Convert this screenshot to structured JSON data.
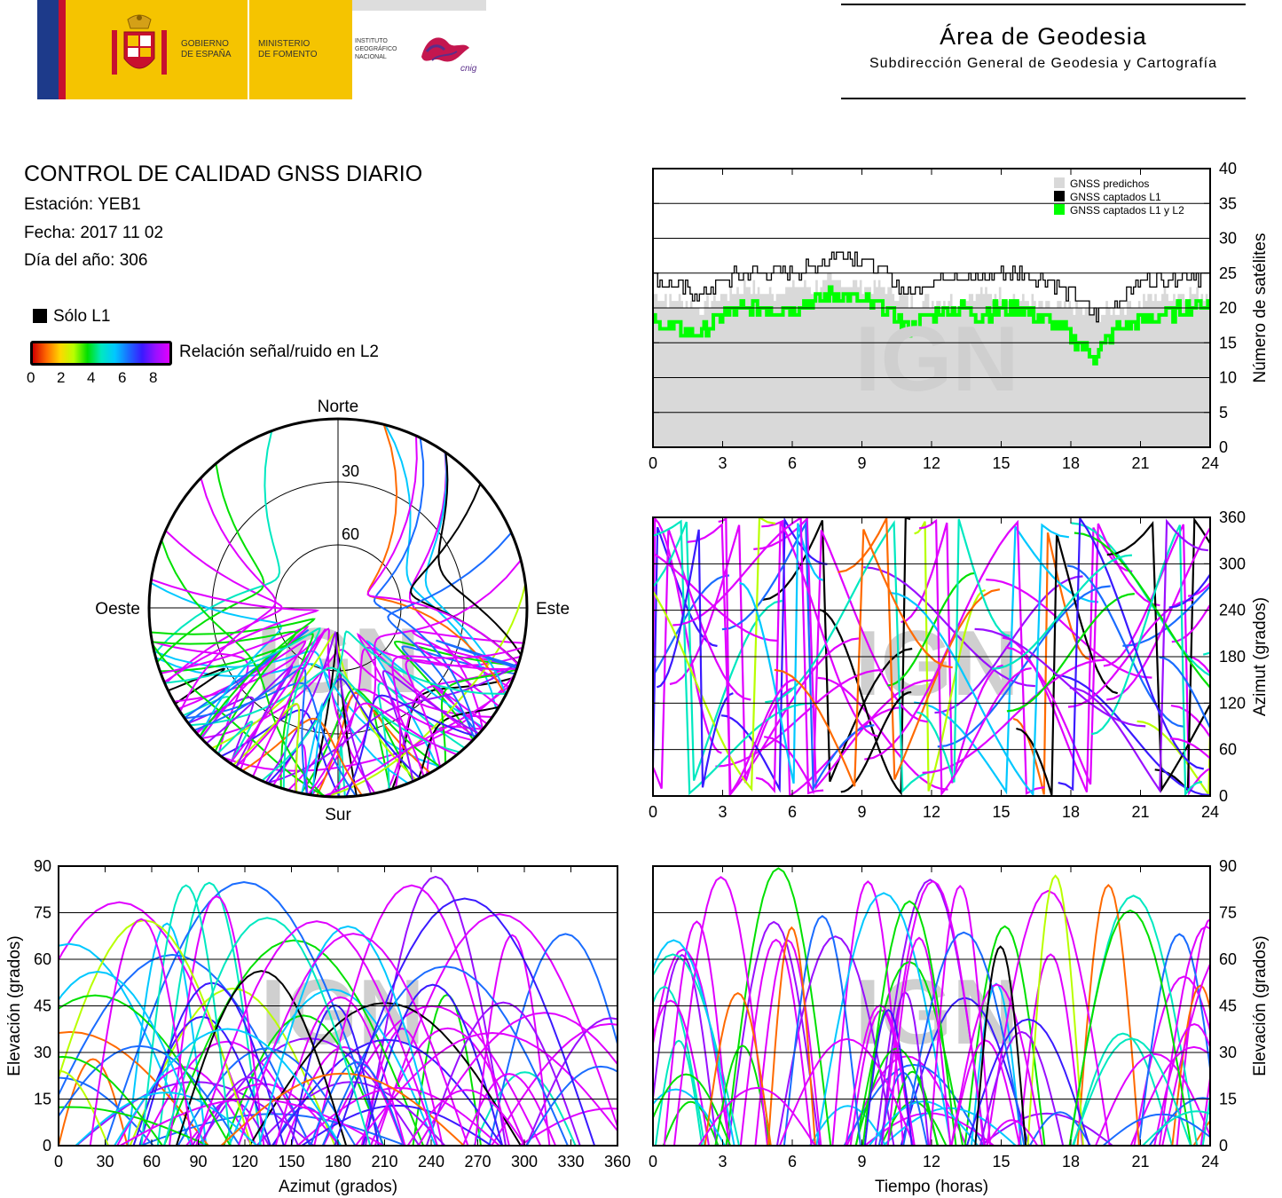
{
  "header": {
    "gov_line1": "GOBIERNO",
    "gov_line2": "DE ESPAÑA",
    "min_line1": "MINISTERIO",
    "min_line2": "DE FOMENTO",
    "inst_line1": "INSTITUTO",
    "inst_line2": "GEOGRÁFICO",
    "inst_line3": "NACIONAL",
    "cnig": "cnig",
    "area_title": "Área de Geodesia",
    "area_subtitle": "Subdirección General de Geodesia y Cartografía"
  },
  "report": {
    "title": "CONTROL DE CALIDAD GNSS DIARIO",
    "station": "Estación: YEB1",
    "date": "Fecha: 2017 11 02",
    "doy": "Día del año: 306",
    "solo_l1": "Sólo L1",
    "snr_label": "Relación señal/ruido en L2",
    "snr_ticks": [
      "0",
      "2",
      "4",
      "6",
      "8"
    ]
  },
  "watermark": "IGN",
  "colors": {
    "predicted": "#d9d9d9",
    "l1": "#000000",
    "l1l2": "#00ff00",
    "snr_scale": [
      "#d00000",
      "#ff6a00",
      "#ffd700",
      "#b8ff00",
      "#00e000",
      "#00e8c0",
      "#00c8ff",
      "#1a6cff",
      "#3a1aff",
      "#9a10ff",
      "#e000ff"
    ]
  },
  "chart_data": [
    {
      "id": "skyplot",
      "type": "scatter",
      "projection": "polar",
      "labels": {
        "north": "Norte",
        "south": "Sur",
        "east": "Este",
        "west": "Oeste"
      },
      "ring_labels": [
        "30",
        "60"
      ],
      "elevation_rings": [
        30,
        60
      ]
    },
    {
      "id": "sat-count",
      "type": "area",
      "ylabel": "Número de satélites",
      "x_ticks": [
        "0",
        "3",
        "6",
        "9",
        "12",
        "15",
        "18",
        "21",
        "24"
      ],
      "y_ticks": [
        "0",
        "5",
        "10",
        "15",
        "20",
        "25",
        "30",
        "35",
        "40"
      ],
      "xlim": [
        0,
        24
      ],
      "ylim": [
        0,
        40
      ],
      "legend": [
        "GNSS predichos",
        "GNSS captados L1",
        "GNSS captados L1 y L2"
      ],
      "legend_position": "top-right",
      "series": [
        {
          "name": "GNSS predichos",
          "x": [
            0,
            1,
            2,
            3,
            4,
            5,
            6,
            7,
            8,
            9,
            10,
            11,
            12,
            13,
            14,
            15,
            16,
            17,
            18,
            19,
            20,
            21,
            22,
            23,
            24
          ],
          "values": [
            22,
            21,
            20,
            22,
            23,
            22,
            23,
            23,
            24,
            23,
            23,
            21,
            21,
            21,
            22,
            22,
            21,
            20,
            20,
            19,
            20,
            21,
            22,
            22,
            22
          ]
        },
        {
          "name": "GNSS captados L1",
          "x": [
            0,
            1,
            2,
            3,
            4,
            5,
            6,
            7,
            8,
            9,
            10,
            11,
            12,
            13,
            14,
            15,
            16,
            17,
            18,
            19,
            20,
            21,
            22,
            23,
            24
          ],
          "values": [
            24,
            23,
            22,
            24,
            25,
            25,
            25,
            26,
            28,
            27,
            25,
            22,
            24,
            25,
            24,
            25,
            25,
            24,
            22,
            19,
            21,
            24,
            24,
            25,
            24
          ]
        },
        {
          "name": "GNSS captados L1 y L2",
          "x": [
            0,
            1,
            2,
            3,
            4,
            5,
            6,
            7,
            8,
            9,
            10,
            11,
            12,
            13,
            14,
            15,
            16,
            17,
            18,
            19,
            20,
            21,
            22,
            23,
            24
          ],
          "values": [
            18,
            17,
            16,
            19,
            20,
            20,
            20,
            21,
            22,
            21,
            20,
            17,
            19,
            20,
            19,
            20,
            20,
            18,
            16,
            13,
            17,
            18,
            19,
            20,
            21
          ]
        }
      ]
    },
    {
      "id": "azimuth-time",
      "type": "scatter",
      "ylabel": "Azimut (grados)",
      "x_ticks": [
        "0",
        "3",
        "6",
        "9",
        "12",
        "15",
        "18",
        "21",
        "24"
      ],
      "y_ticks": [
        "0",
        "60",
        "120",
        "180",
        "240",
        "300",
        "360"
      ],
      "xlim": [
        0,
        24
      ],
      "ylim": [
        0,
        360
      ]
    },
    {
      "id": "elev-azimuth",
      "type": "scatter",
      "xlabel": "Azimut (grados)",
      "ylabel": "Elevación (grados)",
      "x_ticks": [
        "0",
        "30",
        "60",
        "90",
        "120",
        "150",
        "180",
        "210",
        "240",
        "270",
        "300",
        "330",
        "360"
      ],
      "y_ticks": [
        "0",
        "15",
        "30",
        "45",
        "60",
        "75",
        "90"
      ],
      "xlim": [
        0,
        360
      ],
      "ylim": [
        0,
        90
      ]
    },
    {
      "id": "elev-time",
      "type": "scatter",
      "xlabel": "Tiempo (horas)",
      "ylabel": "Elevación (grados)",
      "x_ticks": [
        "0",
        "3",
        "6",
        "9",
        "12",
        "15",
        "18",
        "21",
        "24"
      ],
      "y_ticks": [
        "0",
        "15",
        "30",
        "45",
        "60",
        "75",
        "90"
      ],
      "xlim": [
        0,
        24
      ],
      "ylim": [
        0,
        90
      ]
    }
  ]
}
